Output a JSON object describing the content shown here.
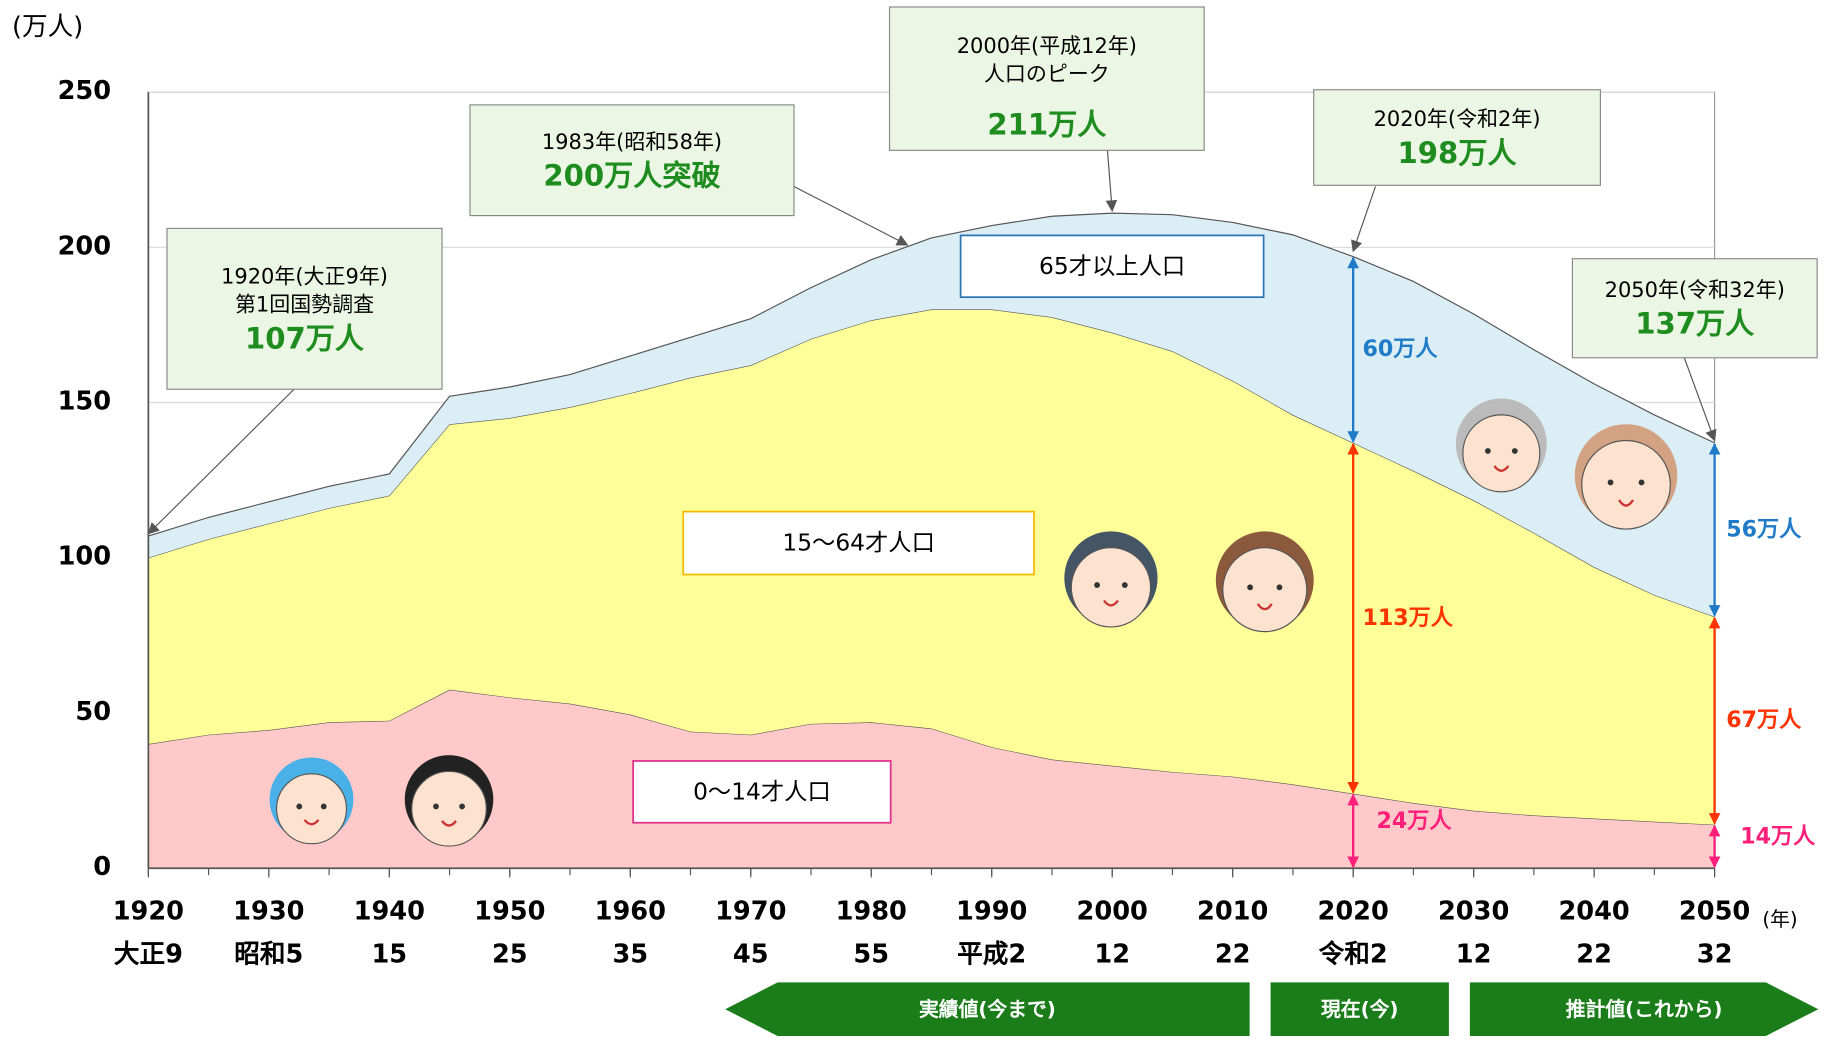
{
  "chart_data": {
    "type": "stacked_area",
    "y_unit": "(万人)",
    "x_unit": "(年)",
    "x": [
      1920,
      1925,
      1930,
      1935,
      1940,
      1945,
      1950,
      1955,
      1960,
      1965,
      1970,
      1975,
      1980,
      1985,
      1990,
      1995,
      2000,
      2005,
      2010,
      2015,
      2020,
      2025,
      2030,
      2035,
      2040,
      2045,
      2050
    ],
    "series": [
      {
        "name": "0〜14才人口",
        "color": "#ffc9c9",
        "border": "#e0308a",
        "label_color": "#ff1f7a",
        "values": [
          40,
          43,
          44.5,
          47,
          47.5,
          57.5,
          55,
          53,
          49.5,
          44,
          43,
          46.5,
          47,
          45,
          39,
          35,
          33,
          31,
          29.5,
          27,
          24,
          21,
          18.5,
          17,
          16,
          15,
          14
        ],
        "value_labels": [
          null,
          null,
          null,
          null,
          null,
          null,
          null,
          null,
          null,
          null,
          null,
          null,
          null,
          null,
          null,
          null,
          null,
          null,
          null,
          null,
          "24万人",
          null,
          null,
          null,
          null,
          null,
          "14万人"
        ]
      },
      {
        "name": "15〜64才人口",
        "color": "#ffff99",
        "border": "#f5b800",
        "label_color": "#ff3300",
        "values": [
          60,
          63,
          66.5,
          69,
          72.5,
          85.5,
          90,
          95.5,
          103.5,
          114,
          119,
          124,
          129.5,
          135,
          141,
          142.5,
          139.5,
          135.5,
          127.5,
          119,
          113,
          107,
          100,
          91,
          81,
          73,
          67
        ],
        "value_labels": [
          null,
          null,
          null,
          null,
          null,
          null,
          null,
          null,
          null,
          null,
          null,
          null,
          null,
          null,
          null,
          null,
          null,
          null,
          null,
          null,
          "113万人",
          null,
          null,
          null,
          null,
          null,
          "67万人"
        ]
      },
      {
        "name": "65才以上人口",
        "color": "#dbeef6",
        "border": "#2e75b6",
        "label_color": "#1f7bc8",
        "values": [
          7,
          7,
          7,
          7,
          7,
          9,
          10,
          10.5,
          12,
          13,
          15,
          16.5,
          19.5,
          23,
          27,
          32.5,
          38.5,
          44,
          51,
          58,
          60,
          61,
          60,
          59,
          59,
          58,
          56
        ],
        "value_labels": [
          null,
          null,
          null,
          null,
          null,
          null,
          null,
          null,
          null,
          null,
          null,
          null,
          null,
          null,
          null,
          null,
          null,
          null,
          null,
          null,
          "60万人",
          null,
          null,
          null,
          null,
          null,
          "56万人"
        ]
      }
    ],
    "xlim": [
      1920,
      2050
    ],
    "ylim": [
      0,
      250
    ],
    "xticks": [
      1920,
      1930,
      1940,
      1950,
      1960,
      1970,
      1980,
      1990,
      2000,
      2010,
      2020,
      2030,
      2040,
      2050
    ],
    "xtick_eras": [
      "大正9",
      "昭和5",
      "15",
      "25",
      "35",
      "45",
      "55",
      "平成2",
      "12",
      "22",
      "令和2",
      "12",
      "22",
      "32"
    ],
    "yticks": [
      0,
      50,
      100,
      150,
      200,
      250
    ],
    "grid": true,
    "callouts": [
      {
        "x": 1920,
        "y": 107,
        "lines": [
          "1920年(大正9年)",
          "第1回国勢調査"
        ],
        "label": "107万人"
      },
      {
        "x": 1983,
        "y": 200,
        "lines": [
          "1983年(昭和58年)"
        ],
        "label": "200万人突破"
      },
      {
        "x": 2000,
        "y": 211,
        "lines": [
          "2000年(平成12年)",
          "人口のピーク"
        ],
        "label": "211万人"
      },
      {
        "x": 2020,
        "y": 198,
        "lines": [
          "2020年(令和2年)"
        ],
        "label": "198万人"
      },
      {
        "x": 2050,
        "y": 137,
        "lines": [
          "2050年(令和32年)"
        ],
        "label": "137万人"
      }
    ],
    "phases": [
      "実績値(今まで)",
      "現在(今)",
      "推計値(これから)"
    ]
  }
}
